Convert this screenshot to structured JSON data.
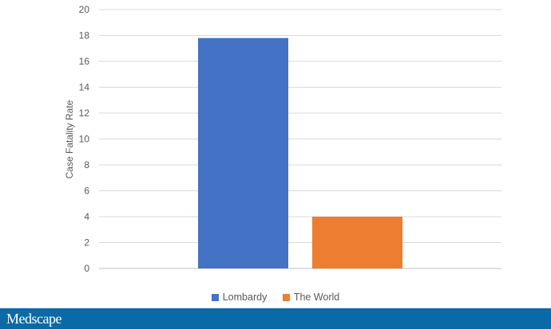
{
  "chart_data": {
    "type": "bar",
    "categories": [
      "Lombardy",
      "The World"
    ],
    "values": [
      17.8,
      4.0
    ],
    "colors": [
      "#4472c4",
      "#ed7d31"
    ],
    "title": "",
    "xlabel": "",
    "ylabel": "Case Fatality Rate",
    "ylim": [
      0,
      20
    ],
    "yticks": [
      0,
      2,
      4,
      6,
      8,
      10,
      12,
      14,
      16,
      18,
      20
    ],
    "grid": true,
    "legend": "bottom"
  },
  "branding": {
    "logo": "Medscape",
    "banner_color": "#0b6aa6"
  }
}
